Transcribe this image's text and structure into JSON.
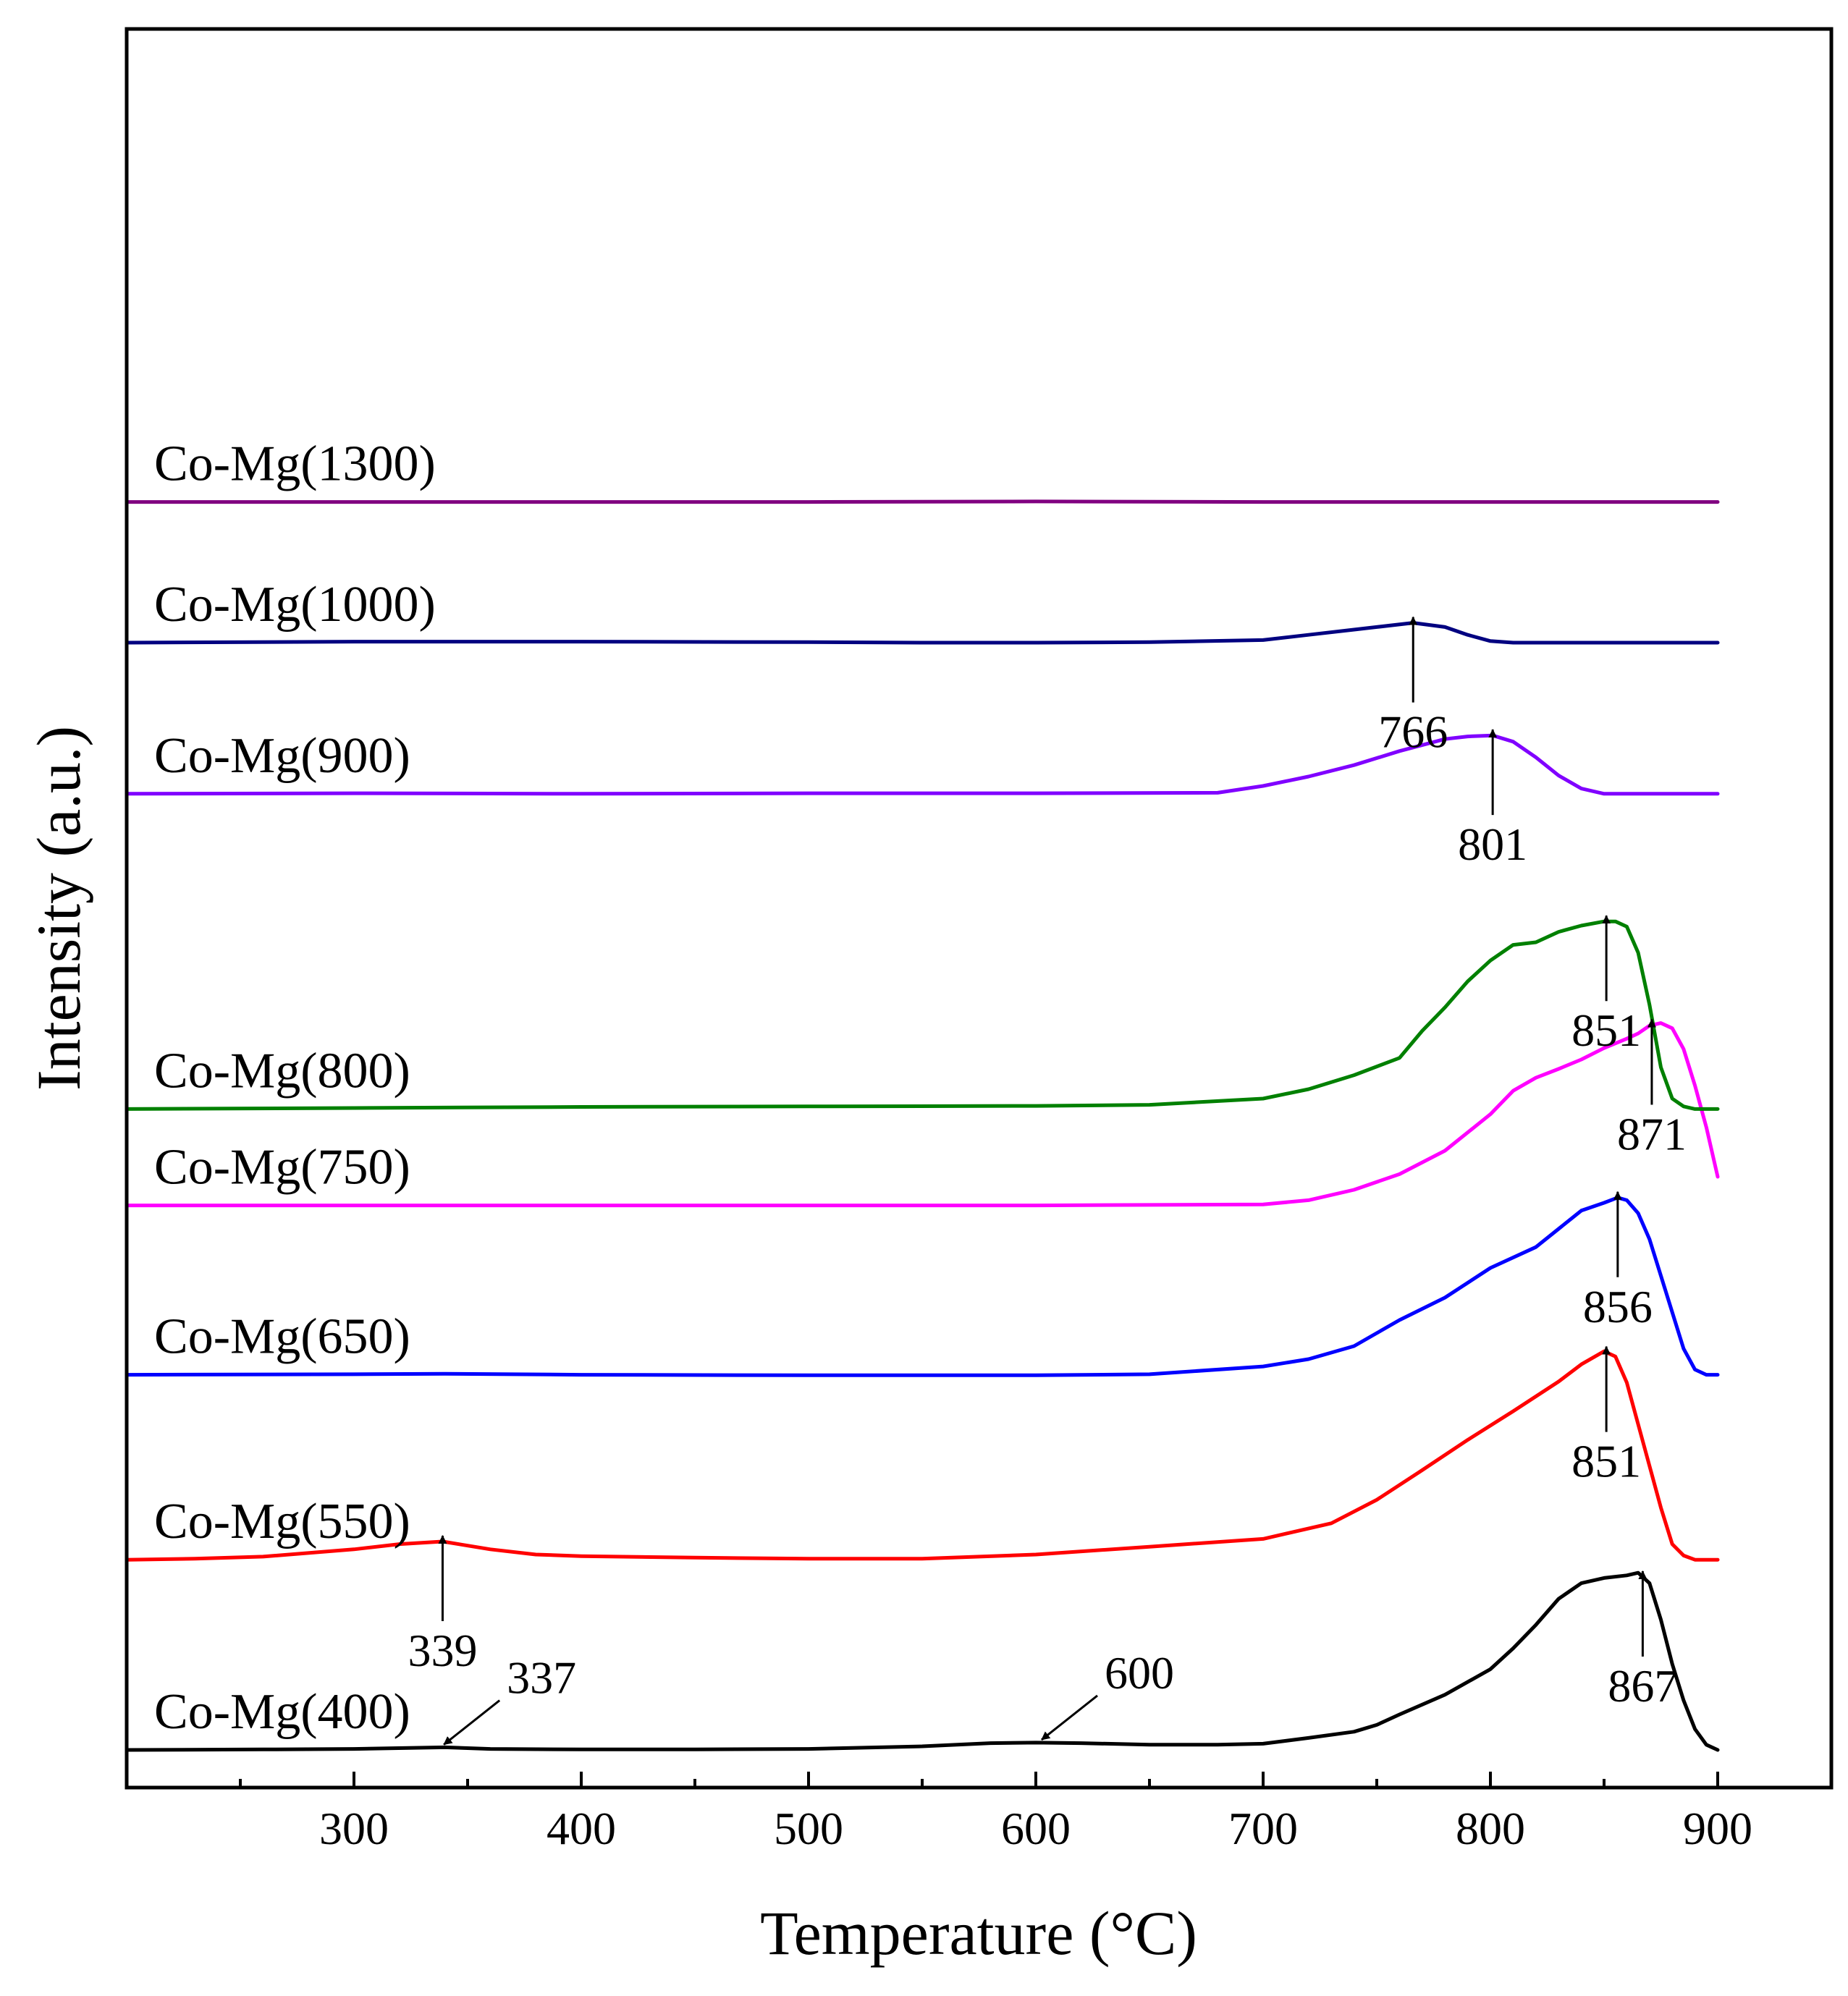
{
  "chart_data": {
    "type": "line",
    "title": "",
    "xlabel": "Temperature (°C)",
    "ylabel": "Intensity (a.u.)",
    "xlim": [
      200,
      950
    ],
    "xticks": [
      300,
      400,
      500,
      600,
      700,
      800,
      900
    ],
    "yticks": [],
    "grid": false,
    "legend": "inline labels above each curve",
    "series": [
      {
        "name": "Co-Mg(400)",
        "color": "#000000",
        "offset": 0,
        "x": [
          200,
          260,
          300,
          340,
          360,
          400,
          450,
          500,
          550,
          580,
          600,
          620,
          650,
          680,
          700,
          720,
          740,
          750,
          760,
          780,
          800,
          810,
          820,
          830,
          840,
          850,
          860,
          865,
          870,
          875,
          880,
          885,
          890,
          895,
          900
        ],
        "y": [
          0,
          1,
          2,
          5,
          2,
          1,
          1,
          2,
          7,
          13,
          14,
          13,
          10,
          10,
          12,
          23,
          35,
          48,
          68,
          106,
          155,
          195,
          240,
          290,
          320,
          330,
          335,
          340,
          320,
          250,
          165,
          95,
          40,
          10,
          0
        ]
      },
      {
        "name": "Co-Mg(550)",
        "color": "#ff0000",
        "offset": 365,
        "x": [
          200,
          230,
          260,
          300,
          320,
          339,
          360,
          380,
          400,
          450,
          500,
          550,
          600,
          650,
          700,
          730,
          750,
          770,
          790,
          810,
          830,
          840,
          850,
          855,
          860,
          865,
          870,
          875,
          880,
          885,
          890,
          900
        ],
        "y": [
          0,
          2,
          6,
          20,
          30,
          35,
          20,
          10,
          7,
          4,
          2,
          2,
          10,
          25,
          40,
          70,
          115,
          172,
          230,
          285,
          342,
          375,
          400,
          390,
          340,
          260,
          180,
          100,
          30,
          8,
          0,
          0
        ]
      },
      {
        "name": "Co-Mg(650)",
        "color": "#0000ff",
        "offset": 720,
        "x": [
          200,
          300,
          340,
          400,
          500,
          600,
          650,
          700,
          720,
          740,
          750,
          760,
          780,
          800,
          820,
          830,
          840,
          850,
          856,
          860,
          865,
          870,
          875,
          880,
          885,
          890,
          895,
          900
        ],
        "y": [
          0,
          1,
          2,
          0,
          -1,
          -1,
          1,
          16,
          30,
          55,
          80,
          105,
          148,
          205,
          245,
          280,
          315,
          330,
          340,
          335,
          310,
          260,
          190,
          120,
          50,
          10,
          0,
          0
        ]
      },
      {
        "name": "Co-Mg(750)",
        "color": "#ff00ff",
        "offset": 1045,
        "x": [
          200,
          400,
          500,
          600,
          700,
          720,
          740,
          760,
          780,
          800,
          810,
          820,
          830,
          840,
          850,
          860,
          865,
          870,
          875,
          880,
          885,
          890,
          895,
          900
        ],
        "y": [
          0,
          0,
          0,
          0,
          2,
          10,
          30,
          60,
          105,
          175,
          220,
          245,
          262,
          280,
          302,
          320,
          330,
          345,
          350,
          340,
          300,
          230,
          150,
          55
        ]
      },
      {
        "name": "Co-Mg(800)",
        "color": "#008000",
        "offset": 1230,
        "x": [
          200,
          300,
          400,
          500,
          600,
          650,
          700,
          720,
          740,
          760,
          770,
          780,
          790,
          800,
          810,
          820,
          830,
          840,
          850,
          855,
          860,
          865,
          870,
          875,
          880,
          885,
          890,
          900
        ],
        "y": [
          0,
          2,
          4,
          5,
          6,
          8,
          20,
          38,
          65,
          98,
          150,
          195,
          245,
          285,
          315,
          320,
          340,
          352,
          360,
          360,
          350,
          300,
          200,
          80,
          20,
          5,
          0,
          0
        ]
      },
      {
        "name": "Co-Mg(900)",
        "color": "#8000ff",
        "offset": 1835,
        "x": [
          200,
          300,
          400,
          500,
          600,
          680,
          700,
          720,
          740,
          760,
          780,
          790,
          801,
          810,
          820,
          830,
          840,
          850,
          900
        ],
        "y": [
          0,
          1,
          0,
          1,
          1,
          2,
          15,
          33,
          55,
          82,
          105,
          110,
          112,
          100,
          70,
          35,
          10,
          0,
          0
        ]
      },
      {
        "name": "Co-Mg(1000)",
        "color": "#000080",
        "offset": 2125,
        "x": [
          200,
          300,
          400,
          500,
          550,
          600,
          650,
          700,
          720,
          740,
          750,
          766,
          780,
          790,
          800,
          810,
          900
        ],
        "y": [
          0,
          2,
          2,
          1,
          0,
          0,
          1,
          5,
          15,
          25,
          30,
          38,
          30,
          15,
          3,
          0,
          0
        ]
      },
      {
        "name": "Co-Mg(1300)",
        "color": "#800080",
        "offset": 2395,
        "x": [
          200,
          400,
          500,
          600,
          700,
          800,
          900
        ],
        "y": [
          0,
          0,
          0,
          1,
          0,
          0,
          0
        ]
      }
    ],
    "annotations": [
      {
        "series": "Co-Mg(400)",
        "label": "337",
        "x": 337,
        "style": "diagonal"
      },
      {
        "series": "Co-Mg(400)",
        "label": "600",
        "x": 600,
        "style": "diagonal"
      },
      {
        "series": "Co-Mg(400)",
        "label": "867",
        "x": 867,
        "style": "up"
      },
      {
        "series": "Co-Mg(550)",
        "label": "339",
        "x": 339,
        "style": "up"
      },
      {
        "series": "Co-Mg(550)",
        "label": "851",
        "x": 851,
        "style": "up"
      },
      {
        "series": "Co-Mg(650)",
        "label": "856",
        "x": 856,
        "style": "up"
      },
      {
        "series": "Co-Mg(750)",
        "label": "871",
        "x": 871,
        "style": "up"
      },
      {
        "series": "Co-Mg(800)",
        "label": "851",
        "x": 851,
        "style": "up"
      },
      {
        "series": "Co-Mg(900)",
        "label": "801",
        "x": 801,
        "style": "up"
      },
      {
        "series": "Co-Mg(1000)",
        "label": "766",
        "x": 766,
        "style": "up"
      }
    ]
  }
}
